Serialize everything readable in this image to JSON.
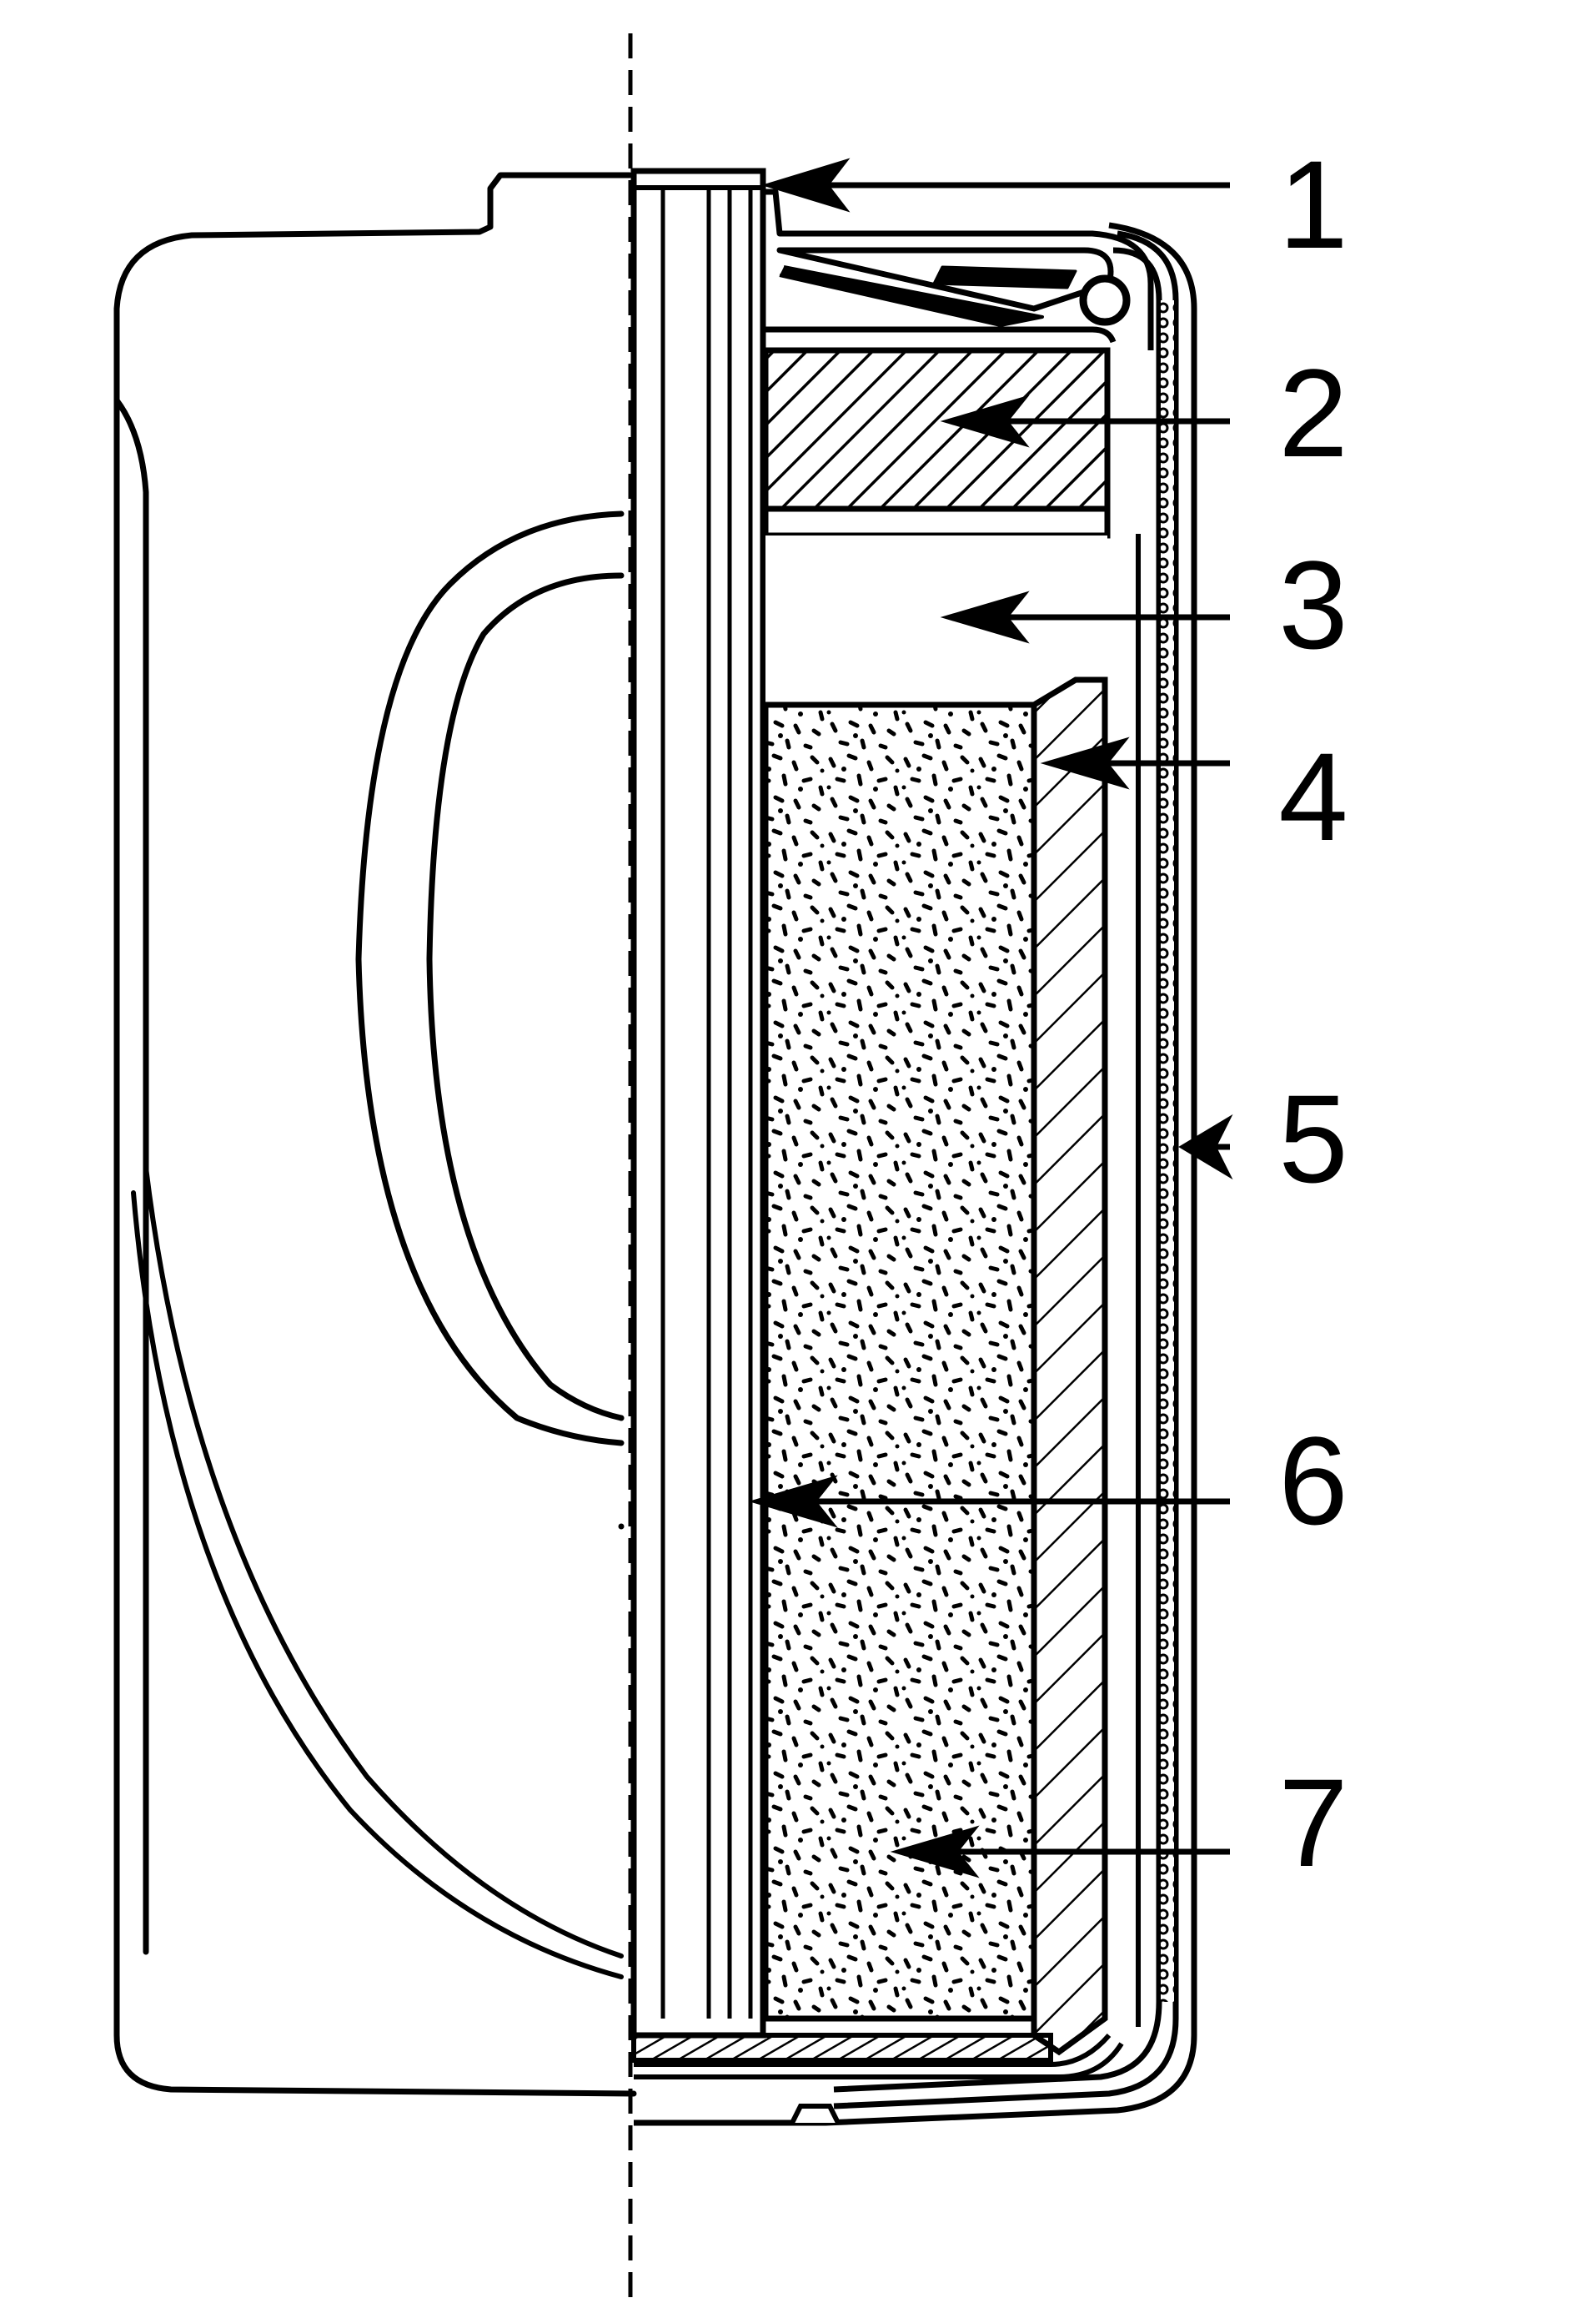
{
  "callouts": [
    {
      "label": "1"
    },
    {
      "label": "2"
    },
    {
      "label": "3"
    },
    {
      "label": "4"
    },
    {
      "label": "5"
    },
    {
      "label": "6"
    },
    {
      "label": "7"
    }
  ],
  "colors": {
    "line": "#000000",
    "background": "#ffffff"
  }
}
